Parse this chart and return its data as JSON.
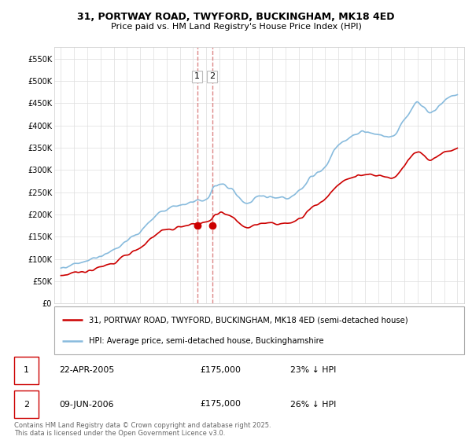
{
  "title": "31, PORTWAY ROAD, TWYFORD, BUCKINGHAM, MK18 4ED",
  "subtitle": "Price paid vs. HM Land Registry's House Price Index (HPI)",
  "legend_line1": "31, PORTWAY ROAD, TWYFORD, BUCKINGHAM, MK18 4ED (semi-detached house)",
  "legend_line2": "HPI: Average price, semi-detached house, Buckinghamshire",
  "footnote": "Contains HM Land Registry data © Crown copyright and database right 2025.\nThis data is licensed under the Open Government Licence v3.0.",
  "transaction1_date": "22-APR-2005",
  "transaction1_price": "£175,000",
  "transaction1_hpi": "23% ↓ HPI",
  "transaction2_date": "09-JUN-2006",
  "transaction2_price": "£175,000",
  "transaction2_hpi": "26% ↓ HPI",
  "transaction1_x": 2005.31,
  "transaction2_x": 2006.44,
  "transaction_y": 175000,
  "line_color_red": "#cc0000",
  "line_color_blue": "#88bbdd",
  "dashed_color": "#dd8888",
  "marker_color": "#cc0000",
  "bg_color": "#ffffff",
  "grid_color": "#dddddd",
  "ylim": [
    0,
    575000
  ],
  "yticks": [
    0,
    50000,
    100000,
    150000,
    200000,
    250000,
    300000,
    350000,
    400000,
    450000,
    500000,
    550000
  ],
  "xlim": [
    1994.5,
    2025.5
  ],
  "xticks": [
    1995,
    1996,
    1997,
    1998,
    1999,
    2000,
    2001,
    2002,
    2003,
    2004,
    2005,
    2006,
    2007,
    2008,
    2009,
    2010,
    2011,
    2012,
    2013,
    2014,
    2015,
    2016,
    2017,
    2018,
    2019,
    2020,
    2021,
    2022,
    2023,
    2024,
    2025
  ],
  "hpi_years": [
    1995.0,
    1995.08,
    1995.17,
    1995.25,
    1995.33,
    1995.42,
    1995.5,
    1995.58,
    1995.67,
    1995.75,
    1995.83,
    1995.92,
    1996.0,
    1996.08,
    1996.17,
    1996.25,
    1996.33,
    1996.42,
    1996.5,
    1996.58,
    1996.67,
    1996.75,
    1996.83,
    1996.92,
    1997.0,
    1997.08,
    1997.17,
    1997.25,
    1997.33,
    1997.42,
    1997.5,
    1997.58,
    1997.67,
    1997.75,
    1997.83,
    1997.92,
    1998.0,
    1998.08,
    1998.17,
    1998.25,
    1998.33,
    1998.42,
    1998.5,
    1998.58,
    1998.67,
    1998.75,
    1998.83,
    1998.92,
    1999.0,
    1999.08,
    1999.17,
    1999.25,
    1999.33,
    1999.42,
    1999.5,
    1999.58,
    1999.67,
    1999.75,
    1999.83,
    1999.92,
    2000.0,
    2000.08,
    2000.17,
    2000.25,
    2000.33,
    2000.42,
    2000.5,
    2000.58,
    2000.67,
    2000.75,
    2000.83,
    2000.92,
    2001.0,
    2001.08,
    2001.17,
    2001.25,
    2001.33,
    2001.42,
    2001.5,
    2001.58,
    2001.67,
    2001.75,
    2001.83,
    2001.92,
    2002.0,
    2002.08,
    2002.17,
    2002.25,
    2002.33,
    2002.42,
    2002.5,
    2002.58,
    2002.67,
    2002.75,
    2002.83,
    2002.92,
    2003.0,
    2003.08,
    2003.17,
    2003.25,
    2003.33,
    2003.42,
    2003.5,
    2003.58,
    2003.67,
    2003.75,
    2003.83,
    2003.92,
    2004.0,
    2004.08,
    2004.17,
    2004.25,
    2004.33,
    2004.42,
    2004.5,
    2004.58,
    2004.67,
    2004.75,
    2004.83,
    2004.92,
    2005.0,
    2005.08,
    2005.17,
    2005.25,
    2005.33,
    2005.42,
    2005.5,
    2005.58,
    2005.67,
    2005.75,
    2005.83,
    2005.92,
    2006.0,
    2006.08,
    2006.17,
    2006.25,
    2006.33,
    2006.42,
    2006.5,
    2006.58,
    2006.67,
    2006.75,
    2006.83,
    2006.92,
    2007.0,
    2007.08,
    2007.17,
    2007.25,
    2007.33,
    2007.42,
    2007.5,
    2007.58,
    2007.67,
    2007.75,
    2007.83,
    2007.92,
    2008.0,
    2008.08,
    2008.17,
    2008.25,
    2008.33,
    2008.42,
    2008.5,
    2008.58,
    2008.67,
    2008.75,
    2008.83,
    2008.92,
    2009.0,
    2009.08,
    2009.17,
    2009.25,
    2009.33,
    2009.42,
    2009.5,
    2009.58,
    2009.67,
    2009.75,
    2009.83,
    2009.92,
    2010.0,
    2010.08,
    2010.17,
    2010.25,
    2010.33,
    2010.42,
    2010.5,
    2010.58,
    2010.67,
    2010.75,
    2010.83,
    2010.92,
    2011.0,
    2011.08,
    2011.17,
    2011.25,
    2011.33,
    2011.42,
    2011.5,
    2011.58,
    2011.67,
    2011.75,
    2011.83,
    2011.92,
    2012.0,
    2012.08,
    2012.17,
    2012.25,
    2012.33,
    2012.42,
    2012.5,
    2012.58,
    2012.67,
    2012.75,
    2012.83,
    2012.92,
    2013.0,
    2013.08,
    2013.17,
    2013.25,
    2013.33,
    2013.42,
    2013.5,
    2013.58,
    2013.67,
    2013.75,
    2013.83,
    2013.92,
    2014.0,
    2014.08,
    2014.17,
    2014.25,
    2014.33,
    2014.42,
    2014.5,
    2014.58,
    2014.67,
    2014.75,
    2014.83,
    2014.92,
    2015.0,
    2015.08,
    2015.17,
    2015.25,
    2015.33,
    2015.42,
    2015.5,
    2015.58,
    2015.67,
    2015.75,
    2015.83,
    2015.92,
    2016.0,
    2016.08,
    2016.17,
    2016.25,
    2016.33,
    2016.42,
    2016.5,
    2016.58,
    2016.67,
    2016.75,
    2016.83,
    2016.92,
    2017.0,
    2017.08,
    2017.17,
    2017.25,
    2017.33,
    2017.42,
    2017.5,
    2017.58,
    2017.67,
    2017.75,
    2017.83,
    2017.92,
    2018.0,
    2018.08,
    2018.17,
    2018.25,
    2018.33,
    2018.42,
    2018.5,
    2018.58,
    2018.67,
    2018.75,
    2018.83,
    2018.92,
    2019.0,
    2019.08,
    2019.17,
    2019.25,
    2019.33,
    2019.42,
    2019.5,
    2019.58,
    2019.67,
    2019.75,
    2019.83,
    2019.92,
    2020.0,
    2020.08,
    2020.17,
    2020.25,
    2020.33,
    2020.42,
    2020.5,
    2020.58,
    2020.67,
    2020.75,
    2020.83,
    2020.92,
    2021.0,
    2021.08,
    2021.17,
    2021.25,
    2021.33,
    2021.42,
    2021.5,
    2021.58,
    2021.67,
    2021.75,
    2021.83,
    2021.92,
    2022.0,
    2022.08,
    2022.17,
    2022.25,
    2022.33,
    2022.42,
    2022.5,
    2022.58,
    2022.67,
    2022.75,
    2022.83,
    2022.92,
    2023.0,
    2023.08,
    2023.17,
    2023.25,
    2023.33,
    2023.42,
    2023.5,
    2023.58,
    2023.67,
    2023.75,
    2023.83,
    2023.92,
    2024.0,
    2024.08,
    2024.17,
    2024.25,
    2024.33,
    2024.42,
    2024.5,
    2024.58,
    2024.67,
    2024.75,
    2024.83,
    2024.92,
    2025.0
  ]
}
